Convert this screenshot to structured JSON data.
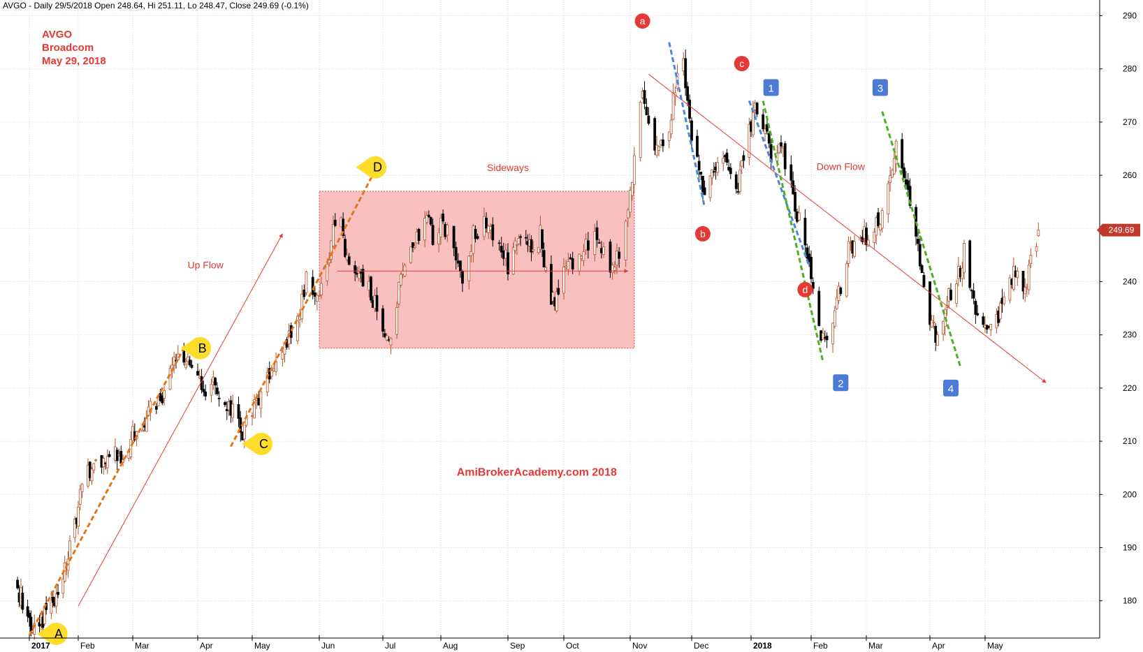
{
  "header": {
    "text": "AVGO - Daily 29/5/2018 Open 248.64, Hi 251.11, Lo 248.47, Close 249.69 (-0.1%)"
  },
  "info": {
    "ticker": "AVGO",
    "company": "Broadcom",
    "date": "May 29, 2018"
  },
  "labels": {
    "up_flow": "Up Flow",
    "sideways": "Sideways",
    "down_flow": "Down Flow",
    "watermark": "AmiBrokerAcademy.com   2018"
  },
  "markers": {
    "callouts": [
      "A",
      "B",
      "C",
      "D"
    ],
    "red_circles": [
      "a",
      "b",
      "c",
      "d"
    ],
    "blue_squares": [
      "1",
      "2",
      "3",
      "4"
    ]
  },
  "last_price_tag": "249.69",
  "colors": {
    "bull_candle": "#b5532c",
    "bear_candle": "#000000",
    "annotation_red": "#e53935",
    "orange_trend": "#e37516",
    "blue_dash": "#4a86d9",
    "green_dash": "#4caf20",
    "sideways_fill": "#f8b5b5",
    "callout_yellow": "#fddd2a",
    "blue_square": "#4c7bd6",
    "grid": "#d8d8d8"
  },
  "chart_data": {
    "type": "candlestick",
    "x_ticks": [
      {
        "label": "2017",
        "date": "2017-01-03",
        "bold": true
      },
      {
        "label": "Feb",
        "date": "2017-02-01",
        "bold": false
      },
      {
        "label": "Mar",
        "date": "2017-03-01",
        "bold": false
      },
      {
        "label": "Apr",
        "date": "2017-04-03",
        "bold": false
      },
      {
        "label": "May",
        "date": "2017-05-01",
        "bold": false
      },
      {
        "label": "Jun",
        "date": "2017-06-01",
        "bold": false
      },
      {
        "label": "Jul",
        "date": "2017-07-03",
        "bold": false
      },
      {
        "label": "Aug",
        "date": "2017-08-01",
        "bold": false
      },
      {
        "label": "Sep",
        "date": "2017-09-01",
        "bold": false
      },
      {
        "label": "Oct",
        "date": "2017-10-02",
        "bold": false
      },
      {
        "label": "Nov",
        "date": "2017-11-01",
        "bold": false
      },
      {
        "label": "Dec",
        "date": "2017-12-01",
        "bold": false
      },
      {
        "label": "2018",
        "date": "2018-01-02",
        "bold": true
      },
      {
        "label": "Feb",
        "date": "2018-02-01",
        "bold": false
      },
      {
        "label": "Mar",
        "date": "2018-03-01",
        "bold": false
      },
      {
        "label": "Apr",
        "date": "2018-04-02",
        "bold": false
      },
      {
        "label": "May",
        "date": "2018-05-01",
        "bold": false
      }
    ],
    "y_ticks": [
      180,
      190,
      200,
      210,
      220,
      230,
      240,
      250,
      260,
      270,
      280,
      290
    ],
    "ylim": [
      172,
      292
    ],
    "close_path": [
      [
        "2016-12-27",
        183
      ],
      [
        "2017-01-03",
        175
      ],
      [
        "2017-01-10",
        176
      ],
      [
        "2017-01-17",
        180
      ],
      [
        "2017-01-24",
        185
      ],
      [
        "2017-01-27",
        191
      ],
      [
        "2017-01-31",
        195
      ],
      [
        "2017-02-03",
        203
      ],
      [
        "2017-02-10",
        205
      ],
      [
        "2017-02-17",
        207
      ],
      [
        "2017-02-24",
        208
      ],
      [
        "2017-03-03",
        212
      ],
      [
        "2017-03-10",
        216
      ],
      [
        "2017-03-17",
        219
      ],
      [
        "2017-03-21",
        224
      ],
      [
        "2017-03-27",
        226
      ],
      [
        "2017-03-31",
        223
      ],
      [
        "2017-04-06",
        219
      ],
      [
        "2017-04-12",
        221
      ],
      [
        "2017-04-18",
        217
      ],
      [
        "2017-04-21",
        216
      ],
      [
        "2017-04-26",
        211
      ],
      [
        "2017-05-01",
        216
      ],
      [
        "2017-05-08",
        222
      ],
      [
        "2017-05-15",
        226
      ],
      [
        "2017-05-22",
        233
      ],
      [
        "2017-05-26",
        240
      ],
      [
        "2017-06-01",
        236
      ],
      [
        "2017-06-05",
        243
      ],
      [
        "2017-06-08",
        252
      ],
      [
        "2017-06-12",
        250
      ],
      [
        "2017-06-15",
        244
      ],
      [
        "2017-06-20",
        242
      ],
      [
        "2017-06-26",
        238
      ],
      [
        "2017-06-29",
        236
      ],
      [
        "2017-07-03",
        230
      ],
      [
        "2017-07-07",
        229
      ],
      [
        "2017-07-12",
        240
      ],
      [
        "2017-07-18",
        247
      ],
      [
        "2017-07-24",
        252
      ],
      [
        "2017-07-28",
        249
      ],
      [
        "2017-08-02",
        251
      ],
      [
        "2017-08-08",
        246
      ],
      [
        "2017-08-11",
        241
      ],
      [
        "2017-08-16",
        249
      ],
      [
        "2017-08-22",
        252
      ],
      [
        "2017-08-28",
        247
      ],
      [
        "2017-09-01",
        243
      ],
      [
        "2017-09-07",
        249
      ],
      [
        "2017-09-13",
        246
      ],
      [
        "2017-09-19",
        249
      ],
      [
        "2017-09-25",
        236
      ],
      [
        "2017-09-29",
        239
      ],
      [
        "2017-10-05",
        244
      ],
      [
        "2017-10-11",
        246
      ],
      [
        "2017-10-17",
        248
      ],
      [
        "2017-10-23",
        242
      ],
      [
        "2017-10-27",
        245
      ],
      [
        "2017-10-31",
        252
      ],
      [
        "2017-11-03",
        262
      ],
      [
        "2017-11-06",
        275
      ],
      [
        "2017-11-09",
        272
      ],
      [
        "2017-11-14",
        264
      ],
      [
        "2017-11-17",
        265
      ],
      [
        "2017-11-21",
        272
      ],
      [
        "2017-11-24",
        278
      ],
      [
        "2017-11-27",
        284
      ],
      [
        "2017-11-29",
        272
      ],
      [
        "2017-12-04",
        262
      ],
      [
        "2017-12-08",
        258
      ],
      [
        "2017-12-13",
        262
      ],
      [
        "2017-12-19",
        264
      ],
      [
        "2017-12-26",
        258
      ],
      [
        "2017-12-29",
        264
      ],
      [
        "2018-01-04",
        272
      ],
      [
        "2018-01-09",
        268
      ],
      [
        "2018-01-12",
        264
      ],
      [
        "2018-01-17",
        266
      ],
      [
        "2018-01-23",
        256
      ],
      [
        "2018-01-29",
        246
      ],
      [
        "2018-02-02",
        238
      ],
      [
        "2018-02-06",
        230
      ],
      [
        "2018-02-09",
        228
      ],
      [
        "2018-02-13",
        234
      ],
      [
        "2018-02-20",
        246
      ],
      [
        "2018-02-26",
        250
      ],
      [
        "2018-03-02",
        248
      ],
      [
        "2018-03-08",
        252
      ],
      [
        "2018-03-13",
        262
      ],
      [
        "2018-03-16",
        265
      ],
      [
        "2018-03-21",
        258
      ],
      [
        "2018-03-27",
        246
      ],
      [
        "2018-04-02",
        232
      ],
      [
        "2018-04-06",
        229
      ],
      [
        "2018-04-11",
        236
      ],
      [
        "2018-04-16",
        240
      ],
      [
        "2018-04-20",
        246
      ],
      [
        "2018-04-24",
        238
      ],
      [
        "2018-04-30",
        230
      ],
      [
        "2018-05-04",
        230
      ],
      [
        "2018-05-09",
        234
      ],
      [
        "2018-05-14",
        242
      ],
      [
        "2018-05-18",
        240
      ],
      [
        "2018-05-23",
        240
      ],
      [
        "2018-05-29",
        249.69
      ]
    ],
    "zone": {
      "label": "Sideways",
      "start": "2017-06-01",
      "end": "2017-11-03",
      "low": 227.5,
      "high": 257
    },
    "annotations": {
      "callout_points": [
        {
          "text": "A",
          "date": "2017-01-20",
          "price": 173.8
        },
        {
          "text": "B",
          "date": "2017-04-05",
          "price": 227.5
        },
        {
          "text": "C",
          "date": "2017-05-06",
          "price": 209.5
        },
        {
          "text": "D",
          "date": "2017-06-30",
          "price": 261.5
        }
      ],
      "red_circle_points": [
        {
          "text": "a",
          "date": "2017-11-07",
          "price": 289
        },
        {
          "text": "b",
          "date": "2017-12-07",
          "price": 249
        },
        {
          "text": "c",
          "date": "2017-12-28",
          "price": 281
        },
        {
          "text": "d",
          "date": "2018-01-29",
          "price": 238.5
        }
      ],
      "blue_square_points": [
        {
          "text": "1",
          "date": "2018-01-12",
          "price": 276.5
        },
        {
          "text": "2",
          "date": "2018-02-16",
          "price": 221
        },
        {
          "text": "3",
          "date": "2018-03-08",
          "price": 276.5
        },
        {
          "text": "4",
          "date": "2018-04-13",
          "price": 220
        }
      ],
      "orange_trendlines": [
        {
          "from": [
            "2017-01-03",
            173.5
          ],
          "to": [
            "2017-03-27",
            227.5
          ]
        },
        {
          "from": [
            "2017-04-20",
            209
          ],
          "to": [
            "2017-07-02",
            263
          ]
        }
      ],
      "red_trend_arrows": [
        {
          "from": [
            "2017-02-01",
            179
          ],
          "to": [
            "2017-05-15",
            249
          ]
        },
        {
          "from": [
            "2017-06-10",
            242
          ],
          "to": [
            "2017-10-31",
            242
          ]
        },
        {
          "from": [
            "2017-11-10",
            279
          ],
          "to": [
            "2018-06-02",
            221
          ]
        }
      ],
      "blue_dashed": [
        {
          "from": [
            "2017-11-20",
            285
          ],
          "to": [
            "2017-12-08",
            254
          ]
        },
        {
          "from": [
            "2018-01-01",
            274
          ],
          "to": [
            "2018-01-31",
            243
          ]
        },
        {
          "from": [
            "2018-03-01",
            0
          ],
          "to": [
            "2018-03-01",
            0
          ]
        }
      ],
      "green_dashed": [
        {
          "from": [
            "2018-01-08",
            274
          ],
          "to": [
            "2018-02-07",
            225
          ]
        },
        {
          "from": [
            "2018-03-09",
            272
          ],
          "to": [
            "2018-04-18",
            224
          ]
        }
      ],
      "text_labels": [
        {
          "key": "up_flow",
          "date": "2017-04-07",
          "price": 242.5
        },
        {
          "key": "sideways",
          "date": "2017-09-01",
          "price": 260.8
        },
        {
          "key": "down_flow",
          "date": "2018-02-16",
          "price": 261
        },
        {
          "key": "watermark",
          "date": "2017-09-17",
          "price": 203.5
        }
      ]
    }
  }
}
